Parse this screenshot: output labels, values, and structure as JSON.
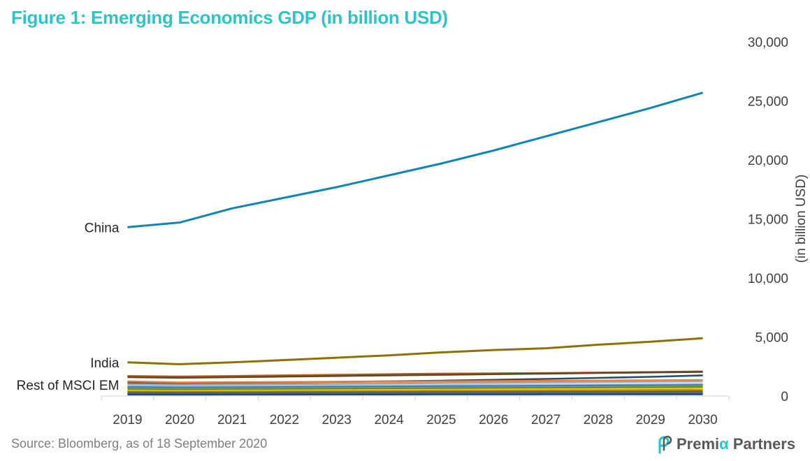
{
  "title": "Figure 1: Emerging Economics GDP (in billion USD)",
  "source": "Source: Bloomberg, as of 18 September 2020",
  "logo": {
    "prefix": "Premi",
    "accent": "α",
    "suffix": "Partners",
    "accent_color": "#2ec4c6"
  },
  "chart_data": {
    "type": "line",
    "title": "Figure 1: Emerging Economics GDP (in billion USD)",
    "xlabel": "",
    "ylabel": "(in billion USD)",
    "ylim": [
      0,
      30000
    ],
    "yticks": [
      0,
      5000,
      10000,
      15000,
      20000,
      25000,
      30000
    ],
    "ytick_labels": [
      "0",
      "5,000",
      "10,000",
      "15,000",
      "20,000",
      "25,000",
      "30,000"
    ],
    "y_axis_side": "right",
    "grid": false,
    "legend": "none",
    "x": [
      "2019",
      "2020",
      "2021",
      "2022",
      "2023",
      "2024",
      "2025",
      "2026",
      "2027",
      "2028",
      "2029",
      "2030"
    ],
    "labelled_series": [
      {
        "name": "China",
        "color": "#0e86b4",
        "values": [
          14300,
          14700,
          15900,
          16800,
          17700,
          18700,
          19700,
          20800,
          22000,
          23200,
          24400,
          25700
        ]
      },
      {
        "name": "India",
        "color": "#8c7300",
        "values": [
          2850,
          2700,
          2850,
          3050,
          3250,
          3450,
          3700,
          3900,
          4050,
          4350,
          4600,
          4900
        ]
      }
    ],
    "group_label": "Rest of MSCI EM",
    "unlabelled_series": [
      {
        "color": "#c55a11",
        "values": [
          1700,
          1650,
          1700,
          1750,
          1800,
          1850,
          1900,
          1920,
          1950,
          1990,
          2030,
          2080
        ]
      },
      {
        "color": "#5a4a2a",
        "values": [
          1600,
          1550,
          1600,
          1650,
          1700,
          1750,
          1800,
          1850,
          1900,
          1950,
          2000,
          2050
        ]
      },
      {
        "color": "#1f4e79",
        "values": [
          1100,
          1050,
          1100,
          1150,
          1200,
          1250,
          1300,
          1370,
          1450,
          1540,
          1630,
          1750
        ]
      },
      {
        "color": "#ed7d31",
        "values": [
          1250,
          1150,
          1170,
          1190,
          1210,
          1230,
          1250,
          1270,
          1290,
          1310,
          1330,
          1350
        ]
      },
      {
        "color": "#a5a5a5",
        "values": [
          1000,
          950,
          980,
          1010,
          1040,
          1070,
          1100,
          1130,
          1160,
          1190,
          1220,
          1250
        ]
      },
      {
        "color": "#9dc3e6",
        "values": [
          850,
          820,
          840,
          860,
          880,
          900,
          920,
          940,
          960,
          980,
          1000,
          1030
        ]
      },
      {
        "color": "#4472c4",
        "values": [
          760,
          720,
          740,
          760,
          780,
          800,
          820,
          840,
          860,
          880,
          900,
          930
        ]
      },
      {
        "color": "#70ad47",
        "values": [
          650,
          610,
          630,
          650,
          670,
          690,
          710,
          730,
          750,
          770,
          790,
          820
        ]
      },
      {
        "color": "#548235",
        "values": [
          560,
          530,
          550,
          570,
          590,
          610,
          630,
          650,
          670,
          690,
          710,
          740
        ]
      },
      {
        "color": "#ffc000",
        "values": [
          470,
          440,
          460,
          480,
          500,
          520,
          540,
          560,
          580,
          600,
          620,
          640
        ]
      },
      {
        "color": "#bf9000",
        "values": [
          380,
          360,
          375,
          390,
          405,
          420,
          435,
          450,
          465,
          480,
          495,
          510
        ]
      },
      {
        "color": "#7f6000",
        "values": [
          300,
          285,
          295,
          305,
          315,
          325,
          335,
          345,
          355,
          365,
          375,
          390
        ]
      },
      {
        "color": "#2e75b6",
        "values": [
          220,
          210,
          215,
          220,
          225,
          230,
          235,
          240,
          245,
          250,
          255,
          262
        ]
      },
      {
        "color": "#264478",
        "values": [
          130,
          125,
          128,
          131,
          134,
          137,
          140,
          143,
          146,
          149,
          152,
          156
        ]
      }
    ]
  }
}
